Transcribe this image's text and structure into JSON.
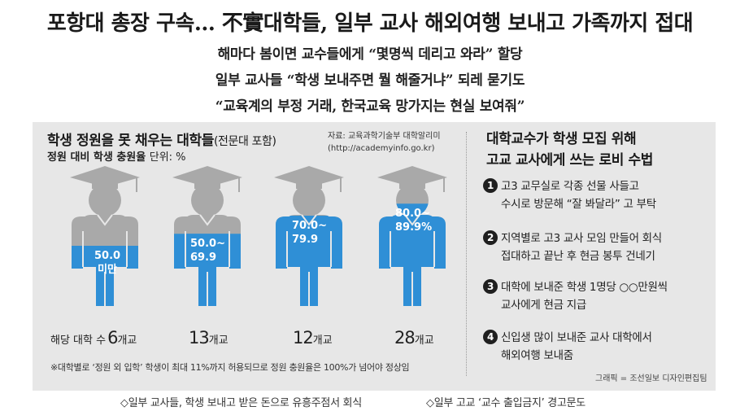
{
  "headline": "포항대 총장 구속… 不實대학들, 일부 교사 해외여행 보내고 가족까지 접대",
  "subheads": [
    "해마다 봄이면 교수들에게 “몇명씩 데리고 와라” 할당",
    "일부 교사들 “학생 보내주면 뭘 해줄거냐” 되레 묻기도",
    "“교육계의 부정 거래, 한국교육 망가지는 현실 보여줘”"
  ],
  "left_panel": {
    "title": "학생 정원을 못 채우는 대학들",
    "title_note": "(전문대 포함)",
    "unit_label": "정원 대비 학생 충원율",
    "unit_suffix": "단위: %",
    "source_line1": "자료: 교육과학기술부 대학알리미",
    "source_line2": "(http://academyinfo.go.kr)",
    "count_prefix": "해당 대학 수",
    "count_unit": "개교",
    "footnote": "※대학별로 ‘정원 외 입학’ 학생이 최대 11%까지 허용되므로 정원 충원율은 100%가 넘어야 정상임"
  },
  "chart_data": {
    "type": "pictograph",
    "categories": [
      "50.0 미만",
      "50.0~69.9",
      "70.0~79.9",
      "80.0~89.9%"
    ],
    "fill_levels_percent": [
      50,
      60,
      75,
      85
    ],
    "school_counts": [
      6,
      13,
      12,
      28
    ],
    "unit": "개교",
    "bar_labels": [
      {
        "line1": "50.0",
        "line2": "미만"
      },
      {
        "line1": "50.0~",
        "line2": "69.9"
      },
      {
        "line1": "70.0~",
        "line2": "79.9"
      },
      {
        "line1": "80.0~",
        "line2": "89.9%"
      }
    ]
  },
  "right_panel": {
    "title_line1": "대학교수가 학생 모집 위해",
    "title_line2": "고교 교사에게 쓰는 로비 수법",
    "tips": [
      {
        "num": "1",
        "line1": "고3 교무실로 각종 선물 사들고",
        "line2": "수시로 방문해 “잘 봐달라” 고 부탁"
      },
      {
        "num": "2",
        "line1": "지역별로 고3 교사 모임 만들어 회식",
        "line2": "접대하고 끝난 후 현금 봉투 건네기"
      },
      {
        "num": "3",
        "line1": "대학에 보내준 학생 1명당 ○○만원씩",
        "line2": "교사에게 현금 지급"
      },
      {
        "num": "4",
        "line1": "신입생 많이 보내준 교사 대학에서",
        "line2": "해외여행 보내줌"
      }
    ],
    "credit": "그래픽 = 조선일보 디자인편집팀"
  },
  "bottom_notes": [
    "◇일부 교사들, 학생 보내고 받은 돈으로 유흥주점서 회식",
    "◇일부 고교 ‘교수 출입금지’ 경고문도"
  ],
  "colors": {
    "panel_bg": "#e7e7e7",
    "figure_gray": "#a9a9a9",
    "fill_blue": "#2f8fd6",
    "bullet": "#1f1f1f"
  }
}
